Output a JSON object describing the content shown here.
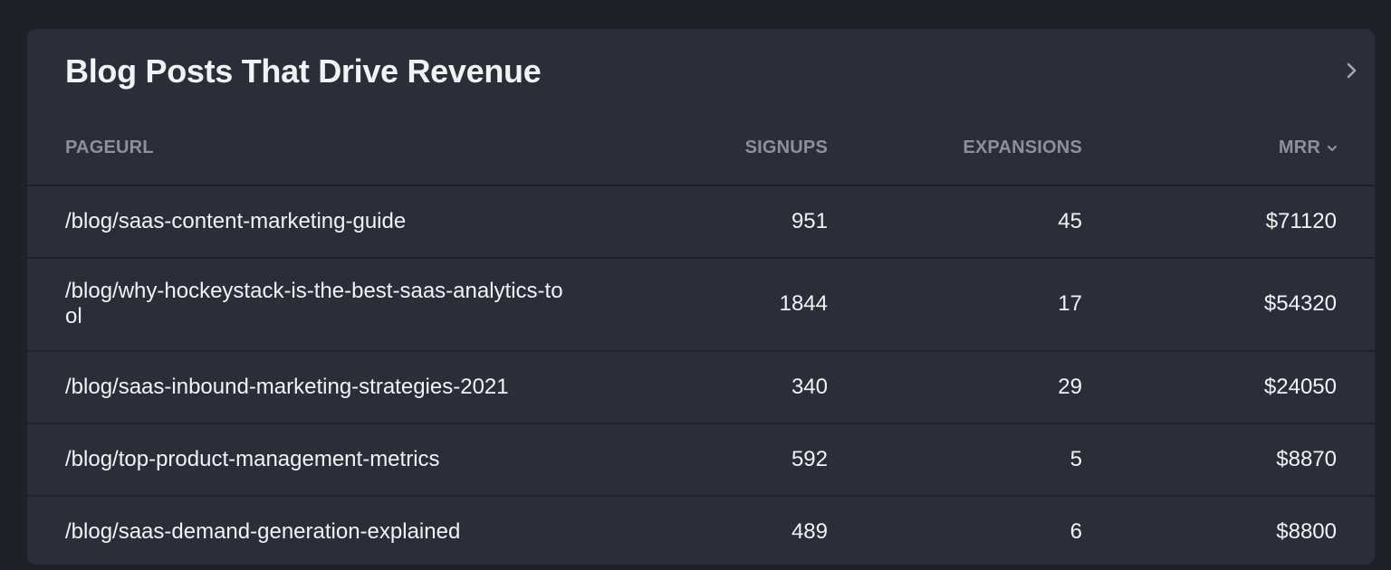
{
  "card": {
    "title": "Blog Posts That Drive Revenue",
    "expand_icon": "chevron-right-icon"
  },
  "table": {
    "columns": {
      "url": "PAGEURL",
      "signups": "SIGNUPS",
      "expansions": "EXPANSIONS",
      "mrr": "MRR"
    },
    "sort_icon": "chevron-down-icon",
    "rows": [
      {
        "url": "/blog/saas-content-marketing-guide",
        "signups": "951",
        "expansions": "45",
        "mrr": "$71120"
      },
      {
        "url": "/blog/why-hockeystack-is-the-best-saas-analytics-tool",
        "signups": "1844",
        "expansions": "17",
        "mrr": "$54320"
      },
      {
        "url": "/blog/saas-inbound-marketing-strategies-2021",
        "signups": "340",
        "expansions": "29",
        "mrr": "$24050"
      },
      {
        "url": "/blog/top-product-management-metrics",
        "signups": "592",
        "expansions": "5",
        "mrr": "$8870"
      },
      {
        "url": "/blog/saas-demand-generation-explained",
        "signups": "489",
        "expansions": "6",
        "mrr": "$8800"
      }
    ]
  },
  "colors": {
    "page_bg": "#1f2126",
    "card_bg": "#2b2e38",
    "text": "#f2f3f5",
    "header_text": "#8c909c",
    "divider": "#20222a"
  }
}
